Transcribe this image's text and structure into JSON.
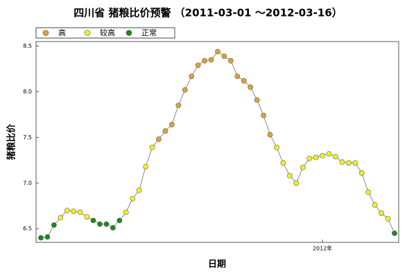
{
  "chart_data": {
    "type": "line",
    "title": "四川省 猪粮比价预警 （2011-03-01 ～2012-03-16）",
    "ylabel": "猪粮比价",
    "xlabel": "日期",
    "legend": [
      {
        "name": "高",
        "color": "#e0a030"
      },
      {
        "name": "较高",
        "color": "#f0f020"
      },
      {
        "name": "正常",
        "color": "#1a8a1a"
      }
    ],
    "line_color": "#888888",
    "categories": [
      null,
      null,
      null,
      null,
      null,
      null,
      null,
      null,
      null,
      null,
      null,
      null,
      null,
      null,
      null,
      null,
      null,
      null,
      null,
      null,
      null,
      null,
      null,
      null,
      null,
      null,
      null,
      null,
      null,
      null,
      null,
      null,
      null,
      null,
      null,
      null,
      null,
      null,
      null,
      null,
      null,
      null,
      null,
      "2012年",
      null,
      null,
      null,
      null,
      null,
      null,
      null,
      null,
      null,
      null,
      null
    ],
    "values": [
      6.4,
      6.41,
      6.54,
      6.62,
      6.7,
      6.69,
      6.68,
      6.63,
      6.59,
      6.55,
      6.55,
      6.51,
      6.59,
      6.68,
      6.83,
      6.92,
      7.18,
      7.39,
      7.48,
      7.57,
      7.64,
      7.85,
      8.02,
      8.17,
      8.29,
      8.34,
      8.35,
      8.44,
      8.39,
      8.34,
      8.17,
      8.12,
      8.05,
      7.91,
      7.74,
      7.53,
      7.39,
      7.22,
      7.08,
      7.0,
      7.17,
      7.27,
      7.28,
      7.3,
      7.32,
      7.29,
      7.23,
      7.22,
      7.22,
      7.11,
      6.9,
      6.76,
      6.67,
      6.61,
      6.45
    ],
    "levels": [
      2,
      2,
      2,
      1,
      1,
      1,
      1,
      1,
      2,
      2,
      2,
      2,
      2,
      1,
      1,
      1,
      1,
      1,
      0,
      0,
      0,
      0,
      0,
      0,
      0,
      0,
      0,
      0,
      0,
      0,
      0,
      0,
      0,
      0,
      0,
      0,
      1,
      1,
      1,
      1,
      1,
      1,
      1,
      1,
      1,
      1,
      1,
      1,
      1,
      1,
      1,
      1,
      1,
      1,
      2
    ],
    "ylim": [
      6.35,
      8.55
    ],
    "yticks": [
      6.5,
      {
        "value": 7.0,
        "label": "7.0"
      },
      7.5,
      {
        "value": 8.0,
        "label": "8.0"
      },
      8.5
    ]
  }
}
